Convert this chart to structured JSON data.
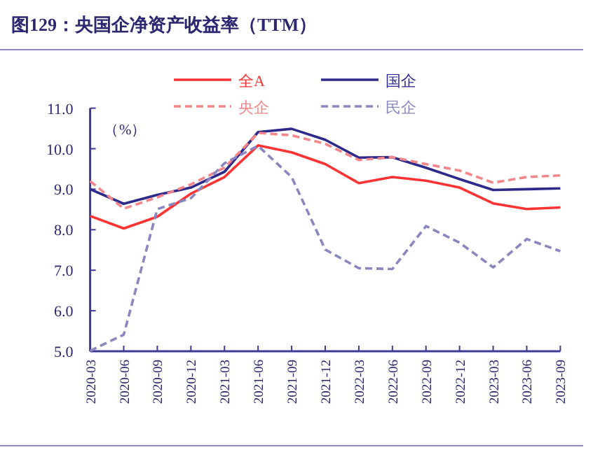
{
  "chart_data": {
    "type": "line",
    "title": "图129：央国企净资产收益率（TTM）",
    "ylabel": "（%）",
    "categories": [
      "2020-03",
      "2020-06",
      "2020-09",
      "2020-12",
      "2021-03",
      "2021-06",
      "2021-09",
      "2021-12",
      "2022-03",
      "2022-06",
      "2022-09",
      "2022-12",
      "2023-03",
      "2023-06",
      "2023-09"
    ],
    "series": [
      {
        "name": "全A",
        "color": "#ff3333",
        "line_style": "solid",
        "values": [
          8.34,
          8.03,
          8.32,
          8.89,
          9.3,
          10.08,
          9.91,
          9.62,
          9.15,
          9.3,
          9.21,
          9.04,
          8.65,
          8.51,
          8.55
        ]
      },
      {
        "name": "国企",
        "color": "#2e2a8c",
        "line_style": "solid",
        "values": [
          9.0,
          8.64,
          8.86,
          9.04,
          9.43,
          10.41,
          10.49,
          10.22,
          9.78,
          9.79,
          9.53,
          9.25,
          8.98,
          9.0,
          9.02
        ]
      },
      {
        "name": "央企",
        "color": "#f4858a",
        "line_style": "dashed",
        "values": [
          9.2,
          8.52,
          8.8,
          9.12,
          9.53,
          10.39,
          10.33,
          10.12,
          9.72,
          9.79,
          9.62,
          9.46,
          9.16,
          9.3,
          9.34
        ]
      },
      {
        "name": "民企",
        "color": "#8a87c0",
        "line_style": "dashed",
        "values": [
          5.01,
          5.41,
          8.51,
          8.78,
          9.64,
          10.07,
          9.3,
          7.51,
          7.05,
          7.03,
          8.09,
          7.68,
          7.07,
          7.77,
          7.47
        ]
      }
    ],
    "ylim": [
      5,
      11
    ],
    "yticks": [
      {
        "value": 5,
        "label": "5.0"
      },
      {
        "value": 6,
        "label": "6.0"
      },
      {
        "value": 7,
        "label": "7.0"
      },
      {
        "value": 8,
        "label": "8.0"
      },
      {
        "value": 9,
        "label": "9.0"
      },
      {
        "value": 10,
        "label": "10.0"
      },
      {
        "value": 11,
        "label": "11.0"
      }
    ],
    "legend": "top"
  }
}
